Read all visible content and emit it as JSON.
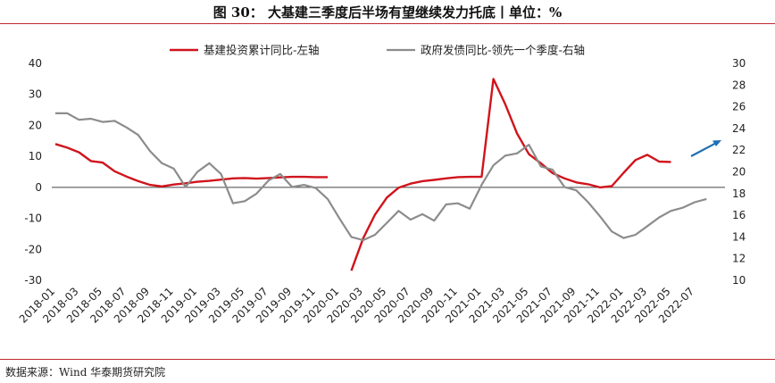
{
  "header": {
    "title": "图 30：  大基建三季度后半场有望继续发力托底丨单位：%"
  },
  "footer": {
    "source": "数据来源：Wind  华泰期货研究院"
  },
  "colors": {
    "series_left": "#d0141c",
    "series_right": "#8c8c8c",
    "arrow": "#1f6fb8",
    "rule": "#c0282e"
  },
  "chart_data": {
    "type": "line",
    "legend_position": "top",
    "grid": false,
    "x_tick_labels": [
      "2018-01",
      "2018-03",
      "2018-05",
      "2018-07",
      "2018-09",
      "2018-11",
      "2019-01",
      "2019-03",
      "2019-05",
      "2019-07",
      "2019-09",
      "2019-11",
      "2020-01",
      "2020-03",
      "2020-05",
      "2020-07",
      "2020-09",
      "2020-11",
      "2021-01",
      "2021-03",
      "2021-05",
      "2021-07",
      "2021-09",
      "2021-11",
      "2022-01",
      "2022-03",
      "2022-05",
      "2022-07"
    ],
    "y_left": {
      "min": -30,
      "max": 40,
      "ticks": [
        40,
        30,
        20,
        10,
        0,
        -10,
        -20,
        -30
      ]
    },
    "y_right": {
      "min": 10,
      "max": 30,
      "ticks": [
        30,
        28,
        26,
        24,
        22,
        20,
        18,
        16,
        14,
        12,
        10
      ]
    },
    "series": [
      {
        "name": "基建投资累计同比-左轴",
        "axis": "left",
        "x": [
          "2018-01",
          "2018-02",
          "2018-03",
          "2018-04",
          "2018-05",
          "2018-06",
          "2018-07",
          "2018-08",
          "2018-09",
          "2018-10",
          "2018-11",
          "2018-12",
          "2019-01",
          "2019-02",
          "2019-03",
          "2019-04",
          "2019-05",
          "2019-06",
          "2019-07",
          "2019-08",
          "2019-09",
          "2019-10",
          "2019-11",
          "2019-12",
          "2020-01",
          "2020-02",
          "2020-03",
          "2020-04",
          "2020-05",
          "2020-06",
          "2020-07",
          "2020-08",
          "2020-09",
          "2020-10",
          "2020-11",
          "2020-12",
          "2021-01",
          "2021-02",
          "2021-03",
          "2021-04",
          "2021-05",
          "2021-06",
          "2021-07",
          "2021-08",
          "2021-09",
          "2021-10",
          "2021-11",
          "2021-12",
          "2022-01",
          "2022-02",
          "2022-03",
          "2022-04",
          "2022-05",
          "2022-06"
        ],
        "values": [
          14.0,
          12.8,
          11.3,
          8.5,
          8.0,
          5.2,
          3.5,
          2.0,
          0.8,
          0.3,
          0.9,
          1.3,
          1.8,
          2.1,
          2.5,
          2.9,
          3.0,
          2.8,
          3.0,
          3.2,
          3.4,
          3.4,
          3.3,
          3.3,
          null,
          -26.9,
          -16.4,
          -8.8,
          -3.3,
          -0.1,
          1.2,
          2.0,
          2.4,
          2.9,
          3.3,
          3.4,
          3.4,
          35.0,
          26.8,
          17.4,
          10.7,
          7.8,
          4.6,
          2.9,
          1.6,
          1.0,
          0.0,
          0.4,
          4.7,
          8.8,
          10.5,
          8.3,
          8.2,
          null
        ]
      },
      {
        "name": "政府发债同比-领先一个季度-右轴",
        "axis": "right",
        "x": [
          "2018-01",
          "2018-02",
          "2018-03",
          "2018-04",
          "2018-05",
          "2018-06",
          "2018-07",
          "2018-08",
          "2018-09",
          "2018-10",
          "2018-11",
          "2018-12",
          "2019-01",
          "2019-02",
          "2019-03",
          "2019-04",
          "2019-05",
          "2019-06",
          "2019-07",
          "2019-08",
          "2019-09",
          "2019-10",
          "2019-11",
          "2019-12",
          "2020-01",
          "2020-02",
          "2020-03",
          "2020-04",
          "2020-05",
          "2020-06",
          "2020-07",
          "2020-08",
          "2020-09",
          "2020-10",
          "2020-11",
          "2020-12",
          "2021-01",
          "2021-02",
          "2021-03",
          "2021-04",
          "2021-05",
          "2021-06",
          "2021-07",
          "2021-08",
          "2021-09",
          "2021-10",
          "2021-11",
          "2021-12",
          "2022-01",
          "2022-02",
          "2022-03",
          "2022-04",
          "2022-05",
          "2022-06",
          "2022-07",
          "2022-08"
        ],
        "values": [
          25.4,
          25.4,
          24.8,
          24.9,
          24.6,
          24.7,
          24.1,
          23.4,
          21.9,
          20.8,
          20.3,
          18.6,
          20.0,
          20.8,
          19.8,
          17.1,
          17.3,
          18.0,
          19.2,
          19.8,
          18.6,
          18.8,
          18.5,
          17.5,
          15.7,
          14.0,
          13.7,
          14.2,
          15.3,
          16.4,
          15.6,
          16.1,
          15.5,
          17.0,
          17.1,
          16.6,
          18.8,
          20.6,
          21.5,
          21.7,
          22.5,
          20.5,
          20.2,
          18.6,
          18.3,
          17.2,
          15.9,
          14.5,
          13.9,
          14.2,
          15.0,
          15.8,
          16.4,
          16.7,
          17.2,
          17.5
        ]
      }
    ]
  }
}
